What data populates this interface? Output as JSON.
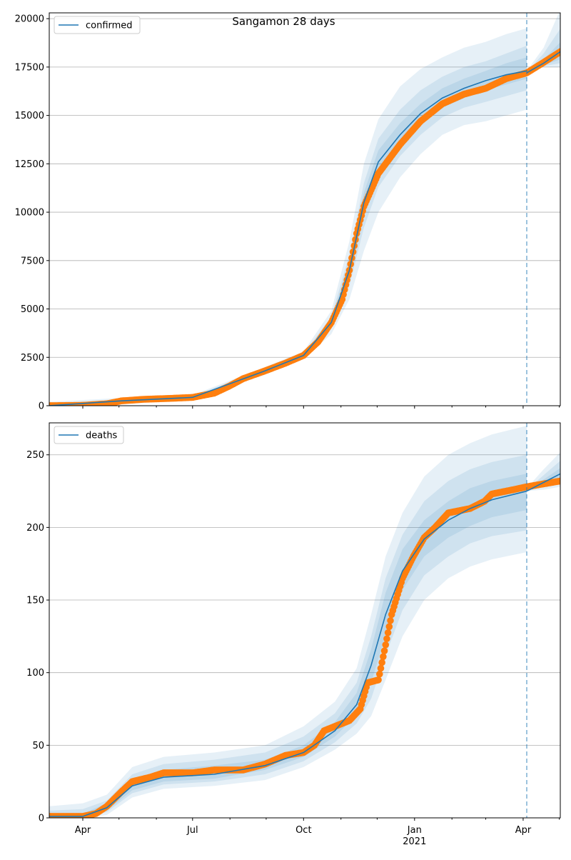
{
  "title": "Sangamon 28 days",
  "chart_data": [
    {
      "type": "line",
      "name": "confirmed",
      "legend": "confirmed",
      "legend_position": "upper-left",
      "x_unit": "days since 2020-03-01",
      "xlim": [
        3.2,
        426.8
      ],
      "ylim": [
        0,
        20300
      ],
      "yticks": [
        0,
        2500,
        5000,
        7500,
        10000,
        12500,
        15000,
        17500,
        20000
      ],
      "grid": "horizontal",
      "forecast_start": 399,
      "observed": {
        "x": [
          3,
          31,
          51,
          63,
          81,
          104,
          122,
          140,
          152,
          164,
          182,
          199,
          214,
          226,
          237,
          246,
          252,
          258,
          264,
          276,
          294,
          311,
          329,
          347,
          365,
          382,
          399,
          412,
          427
        ],
        "y": [
          0,
          20,
          100,
          250,
          330,
          380,
          430,
          650,
          1000,
          1400,
          1800,
          2200,
          2600,
          3300,
          4300,
          5500,
          7000,
          8900,
          10300,
          12000,
          13500,
          14700,
          15600,
          16100,
          16400,
          16900,
          17200,
          17700,
          18300
        ]
      },
      "model": {
        "x": [
          3,
          63,
          122,
          182,
          214,
          237,
          252,
          264,
          276,
          294,
          311,
          329,
          347,
          365,
          382,
          399
        ],
        "y": [
          0,
          250,
          430,
          1800,
          2600,
          4300,
          7000,
          10500,
          12600,
          14000,
          15100,
          15900,
          16400,
          16800,
          17100,
          17300
        ],
        "bands": [
          {
            "level": "outer",
            "lower": [
              0,
              150,
              350,
              1600,
              2400,
              3700,
              5500,
              8000,
              10000,
              11800,
              13000,
              14000,
              14500,
              14700,
              15000,
              15300
            ],
            "upper": [
              200,
              400,
              550,
              2000,
              2800,
              4900,
              8500,
              12500,
              14800,
              16500,
              17400,
              18000,
              18500,
              18800,
              19200,
              19500
            ]
          },
          {
            "level": "middle",
            "lower": [
              0,
              200,
              390,
              1700,
              2500,
              4000,
              6200,
              9200,
              11300,
              12900,
              14000,
              14900,
              15400,
              15700,
              16000,
              16300
            ],
            "upper": [
              100,
              330,
              500,
              1900,
              2700,
              4600,
              7800,
              11500,
              13800,
              15300,
              16300,
              17000,
              17500,
              17800,
              18200,
              18600
            ]
          },
          {
            "level": "inner",
            "lower": [
              0,
              230,
              410,
              1750,
              2550,
              4150,
              6600,
              9900,
              12000,
              13500,
              14600,
              15400,
              15900,
              16300,
              16600,
              16900
            ],
            "upper": [
              50,
              280,
              460,
              1850,
              2650,
              4450,
              7400,
              11000,
              13200,
              14600,
              15600,
              16400,
              16900,
              17300,
              17700,
              18000
            ]
          }
        ]
      },
      "forecast": {
        "x": [
          399,
          413,
          427
        ],
        "y": [
          17200,
          17700,
          18300
        ],
        "bands": [
          {
            "level": "outer",
            "lower": [
              17200,
              17500,
              17500
            ],
            "upper": [
              17300,
              18500,
              20500
            ]
          },
          {
            "level": "middle",
            "lower": [
              17200,
              17550,
              17700
            ],
            "upper": [
              17250,
              18200,
              19500
            ]
          },
          {
            "level": "inner",
            "lower": [
              17200,
              17600,
              17900
            ],
            "upper": [
              17250,
              17900,
              18800
            ]
          }
        ]
      }
    },
    {
      "type": "line",
      "name": "deaths",
      "legend": "deaths",
      "legend_position": "upper-left",
      "x_unit": "days since 2020-03-01",
      "xlim": [
        3.2,
        426.8
      ],
      "ylim": [
        0,
        272
      ],
      "yticks": [
        0,
        50,
        100,
        150,
        200,
        250
      ],
      "grid": "horizontal",
      "forecast_start": 399,
      "observed": {
        "x": [
          3,
          31,
          42,
          51,
          63,
          72,
          87,
          98,
          122,
          140,
          164,
          182,
          199,
          214,
          223,
          231,
          240,
          252,
          261,
          267,
          276,
          281,
          287,
          296,
          305,
          314,
          323,
          334,
          352,
          364,
          370,
          388,
          399,
          427
        ],
        "y": [
          1,
          1,
          3,
          8,
          18,
          25,
          28,
          31,
          31,
          33,
          33,
          37,
          43,
          45,
          50,
          60,
          63,
          67,
          75,
          93,
          95,
          115,
          140,
          165,
          180,
          193,
          200,
          210,
          213,
          218,
          223,
          226,
          228,
          232
        ]
      },
      "model": {
        "x": [
          3,
          31,
          51,
          72,
          98,
          140,
          182,
          214,
          240,
          258,
          270,
          282,
          296,
          314,
          334,
          352,
          370,
          399
        ],
        "y": [
          1,
          1,
          7,
          22,
          28,
          30,
          36,
          45,
          60,
          78,
          105,
          140,
          170,
          192,
          205,
          213,
          219,
          225
        ],
        "bands": [
          {
            "level": "outer",
            "lower": [
              0,
              0,
              2,
              14,
              20,
              22,
              26,
              35,
              47,
              58,
              70,
              95,
              125,
              150,
              165,
              173,
              178,
              183
            ],
            "upper": [
              8,
              10,
              16,
              35,
              42,
              45,
              50,
              63,
              80,
              103,
              140,
              180,
              210,
              235,
              250,
              258,
              264,
              270
            ]
          },
          {
            "level": "middle",
            "lower": [
              0,
              0,
              4,
              17,
              23,
              25,
              30,
              39,
              52,
              65,
              82,
              112,
              143,
              167,
              180,
              189,
              194,
              198
            ],
            "upper": [
              5,
              6,
              12,
              30,
              37,
              40,
              45,
              56,
              72,
              93,
              125,
              165,
              195,
              218,
              232,
              240,
              245,
              250
            ]
          },
          {
            "level": "inner",
            "lower": [
              0,
              0,
              5,
              19,
              25,
              27,
              33,
              42,
              56,
              71,
              93,
              126,
              157,
              180,
              193,
              201,
              207,
              212
            ],
            "upper": [
              3,
              3,
              10,
              26,
              33,
              36,
              40,
              50,
              66,
              86,
              116,
              155,
              185,
              205,
              218,
              227,
              232,
              237
            ]
          }
        ]
      },
      "forecast": {
        "x": [
          399,
          413,
          427
        ],
        "y": [
          225,
          231,
          237
        ],
        "bands": [
          {
            "level": "outer",
            "lower": [
              225,
              226,
              228
            ],
            "upper": [
              227,
              240,
              252
            ]
          },
          {
            "level": "middle",
            "lower": [
              225,
              228,
              231
            ],
            "upper": [
              226,
              236,
              246
            ]
          },
          {
            "level": "inner",
            "lower": [
              225,
              229,
              233
            ],
            "upper": [
              226,
              233,
              241
            ]
          }
        ]
      }
    }
  ],
  "x_axis": {
    "major_ticks": [
      {
        "day": 31,
        "label": "Apr"
      },
      {
        "day": 122,
        "label": "Jul"
      },
      {
        "day": 214,
        "label": "Oct"
      },
      {
        "day": 306,
        "label": "Jan"
      },
      {
        "day": 396,
        "label": "Apr"
      }
    ],
    "year_label": "2021",
    "minor_ticks": [
      61,
      92,
      153,
      183,
      245,
      275,
      337,
      365,
      426
    ]
  },
  "colors": {
    "model": "#1f77b4",
    "observed": "#ff7f0e",
    "grid": "#b0b0b0"
  }
}
